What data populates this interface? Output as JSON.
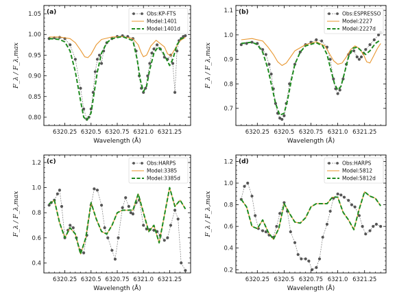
{
  "chart_data": [
    {
      "type": "line",
      "panel_label": "(a)",
      "xlabel": "Wavelength (Å)",
      "ylabel": "F_λ / F_λ,max",
      "xlim": [
        6320.05,
        6321.45
      ],
      "ylim": [
        0.78,
        1.07
      ],
      "xticks": [
        6320.25,
        6320.5,
        6320.75,
        6321.0,
        6321.25
      ],
      "yticks": [
        0.8,
        0.85,
        0.9,
        0.95,
        1.0,
        1.05
      ],
      "legend_loc": "top-right",
      "series": [
        {
          "name": "Obs:KP-FTS",
          "color": "#555555",
          "style": "obs",
          "x": [
            6320.1,
            6320.15,
            6320.2,
            6320.25,
            6320.3,
            6320.35,
            6320.4,
            6320.43,
            6320.46,
            6320.48,
            6320.5,
            6320.52,
            6320.54,
            6320.56,
            6320.58,
            6320.6,
            6320.62,
            6320.65,
            6320.7,
            6320.75,
            6320.8,
            6320.85,
            6320.9,
            6320.93,
            6320.96,
            6320.98,
            6321.0,
            6321.02,
            6321.04,
            6321.06,
            6321.08,
            6321.1,
            6321.13,
            6321.16,
            6321.2,
            6321.23,
            6321.26,
            6321.28,
            6321.3,
            6321.32,
            6321.34,
            6321.36,
            6321.38,
            6321.4
          ],
          "y": [
            0.99,
            0.992,
            0.993,
            0.99,
            0.975,
            0.94,
            0.87,
            0.82,
            0.795,
            0.8,
            0.82,
            0.86,
            0.91,
            0.94,
            0.95,
            0.93,
            0.96,
            0.98,
            0.99,
            0.995,
            0.997,
            0.995,
            0.99,
            0.96,
            0.9,
            0.87,
            0.86,
            0.87,
            0.9,
            0.93,
            0.955,
            0.965,
            0.975,
            0.965,
            0.945,
            0.94,
            0.95,
            0.93,
            0.86,
            0.96,
            0.985,
            0.99,
            0.995,
            0.997
          ]
        },
        {
          "name": "Model:1401",
          "color": "#e8962e",
          "style": "solid",
          "x": [
            6320.1,
            6320.2,
            6320.3,
            6320.35,
            6320.4,
            6320.44,
            6320.47,
            6320.5,
            6320.55,
            6320.6,
            6320.7,
            6320.8,
            6320.9,
            6320.95,
            6320.98,
            6321.0,
            6321.03,
            6321.07,
            6321.12,
            6321.2,
            6321.23,
            6321.26,
            6321.3,
            6321.35,
            6321.4
          ],
          "y": [
            0.994,
            0.994,
            0.99,
            0.98,
            0.962,
            0.946,
            0.944,
            0.952,
            0.975,
            0.988,
            0.994,
            0.995,
            0.99,
            0.975,
            0.955,
            0.946,
            0.95,
            0.972,
            0.986,
            0.97,
            0.953,
            0.948,
            0.965,
            0.985,
            0.993
          ]
        },
        {
          "name": "Model:1401d",
          "color": "#1e8a1e",
          "style": "dashed",
          "x": [
            6320.1,
            6320.2,
            6320.25,
            6320.3,
            6320.35,
            6320.4,
            6320.43,
            6320.46,
            6320.5,
            6320.53,
            6320.56,
            6320.6,
            6320.65,
            6320.7,
            6320.8,
            6320.9,
            6320.94,
            6320.97,
            6321.0,
            6321.03,
            6321.06,
            6321.1,
            6321.14,
            6321.18,
            6321.22,
            6321.25,
            6321.28,
            6321.32,
            6321.36,
            6321.4
          ],
          "y": [
            0.99,
            0.988,
            0.982,
            0.96,
            0.91,
            0.84,
            0.8,
            0.793,
            0.81,
            0.86,
            0.91,
            0.955,
            0.98,
            0.99,
            0.995,
            0.985,
            0.94,
            0.89,
            0.862,
            0.875,
            0.915,
            0.955,
            0.97,
            0.96,
            0.94,
            0.925,
            0.94,
            0.975,
            0.99,
            0.993
          ]
        }
      ]
    },
    {
      "type": "line",
      "panel_label": "(b)",
      "xlabel": "Wavelength (Å)",
      "ylabel": "F_λ / F_λ,max",
      "xlim": [
        6320.05,
        6321.45
      ],
      "ylim": [
        0.63,
        1.12
      ],
      "xticks": [
        6320.25,
        6320.5,
        6320.75,
        6321.0,
        6321.25
      ],
      "yticks": [
        0.7,
        0.8,
        0.9,
        1.0,
        1.1
      ],
      "legend_loc": "top-right",
      "series": [
        {
          "name": "Obs:ESPRESSO",
          "color": "#555555",
          "style": "obs",
          "x": [
            6320.1,
            6320.15,
            6320.2,
            6320.25,
            6320.3,
            6320.33,
            6320.36,
            6320.38,
            6320.4,
            6320.42,
            6320.44,
            6320.46,
            6320.48,
            6320.5,
            6320.52,
            6320.55,
            6320.6,
            6320.65,
            6320.7,
            6320.75,
            6320.8,
            6320.85,
            6320.9,
            6320.93,
            6320.96,
            6320.98,
            6321.0,
            6321.02,
            6321.05,
            6321.08,
            6321.1,
            6321.12,
            6321.15,
            6321.18,
            6321.2,
            6321.22,
            6321.24,
            6321.26,
            6321.3,
            6321.34,
            6321.38,
            6321.4
          ],
          "y": [
            0.96,
            0.965,
            0.97,
            0.965,
            0.94,
            0.92,
            0.88,
            0.84,
            0.78,
            0.72,
            0.68,
            0.66,
            0.655,
            0.67,
            0.72,
            0.8,
            0.88,
            0.93,
            0.96,
            0.97,
            0.98,
            0.975,
            0.95,
            0.9,
            0.82,
            0.78,
            0.76,
            0.775,
            0.82,
            0.88,
            0.92,
            0.93,
            0.935,
            0.91,
            0.9,
            0.91,
            0.925,
            0.94,
            0.96,
            0.98,
            1.0,
            1.01
          ]
        },
        {
          "name": "Model:2227",
          "color": "#e8962e",
          "style": "solid",
          "x": [
            6320.1,
            6320.2,
            6320.3,
            6320.35,
            6320.4,
            6320.44,
            6320.48,
            6320.52,
            6320.56,
            6320.6,
            6320.7,
            6320.8,
            6320.88,
            6320.92,
            6320.96,
            6321.0,
            6321.04,
            6321.08,
            6321.12,
            6321.16,
            6321.2,
            6321.24,
            6321.27,
            6321.3,
            6321.33,
            6321.37,
            6321.4
          ],
          "y": [
            0.98,
            0.985,
            0.975,
            0.95,
            0.92,
            0.89,
            0.875,
            0.885,
            0.91,
            0.935,
            0.96,
            0.972,
            0.955,
            0.925,
            0.895,
            0.88,
            0.885,
            0.91,
            0.94,
            0.955,
            0.945,
            0.92,
            0.89,
            0.885,
            0.91,
            0.945,
            0.965
          ]
        },
        {
          "name": "Model:2227d",
          "color": "#1e8a1e",
          "style": "dashed",
          "x": [
            6320.1,
            6320.15,
            6320.2,
            6320.25,
            6320.3,
            6320.35,
            6320.38,
            6320.42,
            6320.46,
            6320.5,
            6320.53,
            6320.57,
            6320.6,
            6320.65,
            6320.7,
            6320.8,
            6320.86,
            6320.9,
            6320.94,
            6320.97,
            6321.0,
            6321.03,
            6321.06,
            6321.1,
            6321.14,
            6321.18,
            6321.22,
            6321.26,
            6321.3,
            6321.35,
            6321.4
          ],
          "y": [
            0.965,
            0.968,
            0.97,
            0.96,
            0.93,
            0.86,
            0.8,
            0.72,
            0.672,
            0.68,
            0.73,
            0.82,
            0.88,
            0.93,
            0.955,
            0.968,
            0.955,
            0.92,
            0.85,
            0.8,
            0.775,
            0.79,
            0.84,
            0.91,
            0.945,
            0.95,
            0.935,
            0.92,
            0.935,
            0.965,
            0.98
          ]
        }
      ]
    },
    {
      "type": "line",
      "panel_label": "(c)",
      "xlabel": "Wavelength (Å)",
      "ylabel": "F_λ / F_λ,max",
      "xlim": [
        6320.05,
        6321.45
      ],
      "ylim": [
        0.32,
        1.26
      ],
      "xticks": [
        6320.25,
        6320.5,
        6320.75,
        6321.0,
        6321.25
      ],
      "yticks": [
        0.4,
        0.6,
        0.8,
        1.0,
        1.2
      ],
      "legend_loc": "top-right",
      "series": [
        {
          "name": "Obs:HARPS",
          "color": "#555555",
          "style": "obs",
          "x": [
            6320.1,
            6320.12,
            6320.15,
            6320.18,
            6320.2,
            6320.22,
            6320.25,
            6320.28,
            6320.3,
            6320.33,
            6320.36,
            6320.4,
            6320.43,
            6320.46,
            6320.5,
            6320.53,
            6320.56,
            6320.6,
            6320.63,
            6320.66,
            6320.7,
            6320.73,
            6320.76,
            6320.8,
            6320.83,
            6320.86,
            6320.88,
            6320.9,
            6320.93,
            6320.96,
            6321.0,
            6321.03,
            6321.06,
            6321.1,
            6321.13,
            6321.16,
            6321.2,
            6321.23,
            6321.26,
            6321.3,
            6321.33,
            6321.36,
            6321.4
          ],
          "y": [
            0.86,
            0.88,
            0.9,
            0.95,
            0.98,
            0.85,
            0.6,
            0.66,
            0.7,
            0.68,
            0.6,
            0.5,
            0.48,
            0.62,
            0.86,
            0.99,
            0.98,
            0.86,
            0.68,
            0.6,
            0.5,
            0.43,
            0.6,
            0.84,
            0.92,
            0.85,
            0.8,
            0.79,
            0.88,
            0.9,
            0.7,
            0.67,
            0.665,
            0.66,
            0.65,
            0.62,
            0.58,
            0.6,
            0.7,
            0.82,
            0.75,
            0.4,
            0.34
          ]
        },
        {
          "name": "Model:3385",
          "color": "#e8962e",
          "style": "solid",
          "x": [
            6320.1,
            6320.15,
            6320.2,
            6320.25,
            6320.3,
            6320.35,
            6320.4,
            6320.45,
            6320.5,
            6320.55,
            6320.6,
            6320.65,
            6320.7,
            6320.75,
            6320.8,
            6320.85,
            6320.9,
            6320.95,
            6321.0,
            6321.05,
            6321.1,
            6321.15,
            6321.2,
            6321.25,
            6321.3,
            6321.35,
            6321.4
          ],
          "y": [
            0.87,
            0.9,
            0.72,
            0.6,
            0.68,
            0.63,
            0.47,
            0.6,
            0.88,
            0.75,
            0.65,
            0.63,
            0.7,
            0.8,
            0.82,
            0.82,
            0.82,
            0.95,
            0.8,
            0.65,
            0.7,
            0.56,
            0.78,
            1.0,
            0.85,
            0.9,
            0.83
          ]
        },
        {
          "name": "Model:3385d",
          "color": "#1e8a1e",
          "style": "dashed",
          "x": [
            6320.1,
            6320.15,
            6320.2,
            6320.25,
            6320.3,
            6320.35,
            6320.4,
            6320.45,
            6320.5,
            6320.55,
            6320.6,
            6320.65,
            6320.7,
            6320.75,
            6320.8,
            6320.85,
            6320.9,
            6320.95,
            6321.0,
            6321.05,
            6321.1,
            6321.15,
            6321.2,
            6321.25,
            6321.3,
            6321.35,
            6321.4
          ],
          "y": [
            0.87,
            0.9,
            0.72,
            0.6,
            0.68,
            0.63,
            0.47,
            0.6,
            0.88,
            0.75,
            0.65,
            0.63,
            0.7,
            0.8,
            0.82,
            0.82,
            0.82,
            0.95,
            0.8,
            0.65,
            0.7,
            0.56,
            0.78,
            1.0,
            0.85,
            0.9,
            0.83
          ]
        }
      ]
    },
    {
      "type": "line",
      "panel_label": "(d)",
      "xlabel": "Wavelength (Å)",
      "ylabel": "F_λ / F_λ,max",
      "xlim": [
        6320.05,
        6321.45
      ],
      "ylim": [
        0.17,
        1.26
      ],
      "xticks": [
        6320.25,
        6320.5,
        6320.75,
        6321.0,
        6321.25
      ],
      "yticks": [
        0.2,
        0.4,
        0.6,
        0.8,
        1.0,
        1.2
      ],
      "legend_loc": "top-right",
      "series": [
        {
          "name": "Obs:HARPS",
          "color": "#555555",
          "style": "obs",
          "x": [
            6320.1,
            6320.13,
            6320.16,
            6320.2,
            6320.23,
            6320.26,
            6320.3,
            6320.33,
            6320.36,
            6320.4,
            6320.43,
            6320.46,
            6320.5,
            6320.53,
            6320.56,
            6320.6,
            6320.63,
            6320.66,
            6320.7,
            6320.73,
            6320.76,
            6320.8,
            6320.83,
            6320.86,
            6320.9,
            6320.93,
            6320.96,
            6321.0,
            6321.03,
            6321.06,
            6321.1,
            6321.13,
            6321.16,
            6321.2,
            6321.23,
            6321.26,
            6321.3,
            6321.33,
            6321.36,
            6321.4
          ],
          "y": [
            0.85,
            0.97,
            1.0,
            0.88,
            0.7,
            0.58,
            0.56,
            0.55,
            0.52,
            0.5,
            0.6,
            0.72,
            0.82,
            0.74,
            0.55,
            0.45,
            0.34,
            0.3,
            0.3,
            0.28,
            0.2,
            0.22,
            0.3,
            0.5,
            0.62,
            0.74,
            0.86,
            0.9,
            0.89,
            0.87,
            0.84,
            0.8,
            0.78,
            0.7,
            0.6,
            0.53,
            0.56,
            0.6,
            0.62,
            0.6
          ]
        },
        {
          "name": "Model:5812",
          "color": "#e8962e",
          "style": "solid",
          "x": [
            6320.1,
            6320.15,
            6320.2,
            6320.25,
            6320.3,
            6320.35,
            6320.4,
            6320.45,
            6320.5,
            6320.55,
            6320.6,
            6320.65,
            6320.7,
            6320.75,
            6320.8,
            6320.85,
            6320.9,
            6320.95,
            6321.0,
            6321.05,
            6321.1,
            6321.15,
            6321.2,
            6321.25,
            6321.3,
            6321.35,
            6321.4
          ],
          "y": [
            0.85,
            0.78,
            0.6,
            0.58,
            0.66,
            0.55,
            0.48,
            0.58,
            0.81,
            0.72,
            0.64,
            0.63,
            0.68,
            0.78,
            0.81,
            0.81,
            0.81,
            0.87,
            0.87,
            0.73,
            0.66,
            0.57,
            0.76,
            0.92,
            0.88,
            0.86,
            0.79
          ]
        },
        {
          "name": "Model:5812d",
          "color": "#1e8a1e",
          "style": "dashed",
          "x": [
            6320.1,
            6320.15,
            6320.2,
            6320.25,
            6320.3,
            6320.35,
            6320.4,
            6320.45,
            6320.5,
            6320.55,
            6320.6,
            6320.65,
            6320.7,
            6320.75,
            6320.8,
            6320.85,
            6320.9,
            6320.95,
            6321.0,
            6321.05,
            6321.1,
            6321.15,
            6321.2,
            6321.25,
            6321.3,
            6321.35,
            6321.4
          ],
          "y": [
            0.85,
            0.78,
            0.6,
            0.58,
            0.66,
            0.55,
            0.48,
            0.58,
            0.81,
            0.72,
            0.64,
            0.63,
            0.68,
            0.78,
            0.81,
            0.81,
            0.81,
            0.87,
            0.87,
            0.73,
            0.66,
            0.57,
            0.76,
            0.92,
            0.88,
            0.86,
            0.79
          ]
        }
      ]
    }
  ]
}
